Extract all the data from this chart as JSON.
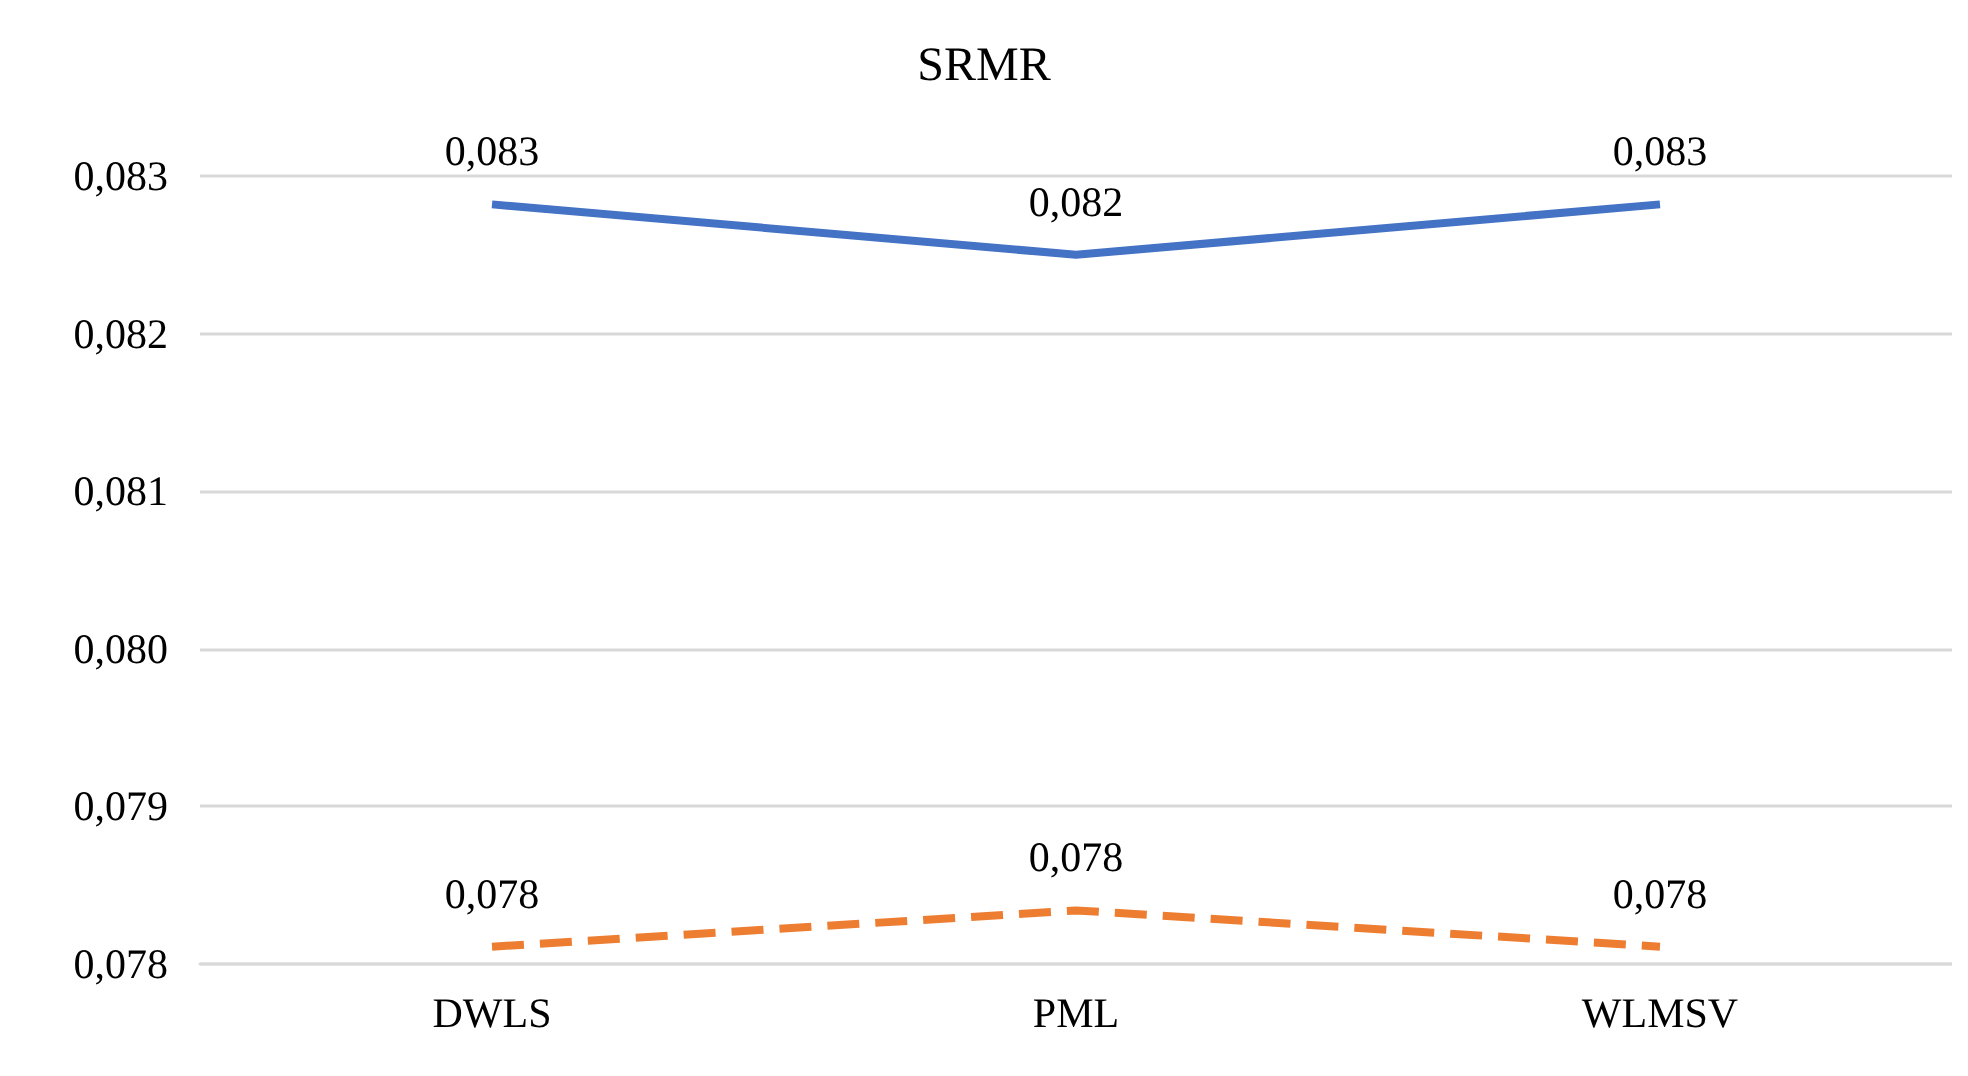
{
  "chart_data": {
    "type": "line",
    "title": "SRMR",
    "categories": [
      "DWLS",
      "PML",
      "WLMSV"
    ],
    "series": [
      {
        "color": "#4472c4",
        "values": [
          0.08282,
          0.0825,
          0.08282
        ],
        "value_labels": [
          "0,083",
          "0,082",
          "0,083"
        ],
        "line_style": "solid"
      },
      {
        "color": "#ed7d31",
        "values": [
          0.07811,
          0.07834,
          0.07811
        ],
        "value_labels": [
          "0,078",
          "0,078",
          "0,078"
        ],
        "line_style": "dashed"
      }
    ],
    "ylim": [
      0.078,
      0.083
    ],
    "yticks": [
      {
        "value": 0.078,
        "label": "0,078"
      },
      {
        "value": 0.079,
        "label": "0,079"
      },
      {
        "value": 0.08,
        "label": "0,080"
      },
      {
        "value": 0.081,
        "label": "0,081"
      },
      {
        "value": 0.082,
        "label": "0,082"
      },
      {
        "value": 0.083,
        "label": "0,083"
      }
    ],
    "grid": "y",
    "marker": "none"
  }
}
